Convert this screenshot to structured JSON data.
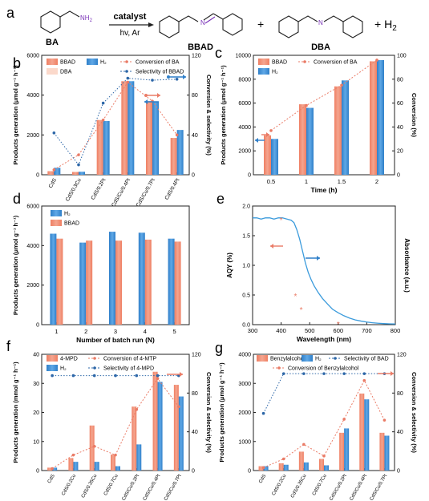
{
  "scheme": {
    "panel_label": "a",
    "reactant": "BA",
    "reactant_group": "NH",
    "reactant_group_sub": "2",
    "catalyst_label": "catalyst",
    "conditions_label": "hv, Ar",
    "product1": "BBAD",
    "product1_atom": "N",
    "plus1": "+",
    "product2": "DBA",
    "product2_atom": "N",
    "plus2": "+ H",
    "h2_sub": "2"
  },
  "colors": {
    "bbad": "#f4a58f",
    "bbad_dark": "#ef7f63",
    "dba": "#fbd9cb",
    "h2": "#5fa8e6",
    "h2_dark": "#2f7fc9",
    "conv": "#ea7b66",
    "sel": "#2d67a8",
    "aqy": "#ea7b66",
    "abs": "#3b9bdc"
  },
  "chart_data": [
    {
      "panel": "b",
      "type": "bar",
      "categories": [
        "CdS",
        "CdS/0.3Cu",
        "CdS/0.2Pt",
        "CdS/Cu/0.4Pt",
        "CdS/Cu/0.7Pt",
        "CdS/0.4Pt"
      ],
      "series": [
        {
          "name": "BBAD",
          "axis": "left",
          "values": [
            180,
            140,
            2750,
            4700,
            3700,
            1850
          ]
        },
        {
          "name": "DBA",
          "axis": "left",
          "values": [
            0,
            0,
            0,
            0,
            0,
            0
          ]
        },
        {
          "name": "H2",
          "axis": "left",
          "values": [
            350,
            150,
            2700,
            4700,
            3650,
            2250
          ]
        },
        {
          "name": "Conversion of BA",
          "axis": "right",
          "kind": "line",
          "values": [
            5,
            20,
            55,
            93,
            74,
            40
          ]
        },
        {
          "name": "Selectivity of BBAD",
          "axis": "right",
          "kind": "line",
          "values": [
            42,
            10,
            72,
            97,
            95,
            96
          ]
        }
      ],
      "ylabel": "Products generation (μmol g⁻¹ h⁻¹)",
      "y2label": "Conversion & selectivity (%)",
      "ylim": [
        0,
        6000
      ],
      "y2lim": [
        0,
        120
      ],
      "yticks": [
        0,
        2000,
        4000,
        6000
      ],
      "y2ticks": [
        0,
        40,
        80,
        120
      ]
    },
    {
      "panel": "c",
      "type": "bar",
      "categories": [
        "0.5",
        "1",
        "1.5",
        "2"
      ],
      "series": [
        {
          "name": "BBAD",
          "axis": "left",
          "values": [
            3300,
            5900,
            7400,
            9500
          ]
        },
        {
          "name": "H2",
          "axis": "left",
          "values": [
            3000,
            5600,
            7900,
            9600
          ]
        },
        {
          "name": "Conversion of BA",
          "axis": "right",
          "kind": "line",
          "values": [
            37,
            58,
            75,
            96
          ]
        }
      ],
      "xlabel": "Time (h)",
      "ylabel": "Products generation (μmol g⁻¹ h⁻¹)",
      "y2label": "Conversion (%)",
      "ylim": [
        0,
        10000
      ],
      "y2lim": [
        0,
        100
      ],
      "yticks": [
        0,
        2000,
        4000,
        6000,
        8000,
        10000
      ],
      "y2ticks": [
        0,
        20,
        40,
        60,
        80,
        100
      ]
    },
    {
      "panel": "d",
      "type": "bar",
      "categories": [
        "1",
        "2",
        "3",
        "4",
        "5"
      ],
      "series": [
        {
          "name": "H2",
          "values": [
            4600,
            4150,
            4700,
            4650,
            4350
          ]
        },
        {
          "name": "BBAD",
          "values": [
            4350,
            4250,
            4250,
            4300,
            4200
          ]
        }
      ],
      "xlabel": "Number of batch run (N)",
      "ylabel": "Products generation (μmol g⁻¹ h⁻¹)",
      "ylim": [
        0,
        6000
      ],
      "yticks": [
        0,
        2000,
        4000,
        6000
      ]
    },
    {
      "panel": "e",
      "type": "line",
      "xlabel": "Wavelength (nm)",
      "ylabel": "AQY (%)",
      "y2label": "Absorbance (a.u.)",
      "xlim": [
        300,
        800
      ],
      "ylim": [
        0,
        2.0
      ],
      "xticks": [
        300,
        400,
        500,
        600,
        700,
        800
      ],
      "yticks": [
        0.0,
        0.5,
        1.0,
        1.5,
        2.0
      ],
      "series": [
        {
          "name": "AQY",
          "kind": "scatter",
          "x": [
            400,
            450,
            470,
            600
          ],
          "y": [
            1.76,
            0.47,
            0.24,
            0.0
          ]
        },
        {
          "name": "Absorbance",
          "kind": "line",
          "x": [
            300,
            315,
            330,
            345,
            360,
            375,
            390,
            405,
            420,
            435,
            445,
            455,
            465,
            475,
            485,
            495,
            505,
            515,
            530,
            545,
            560,
            580,
            600,
            620,
            640,
            660,
            680,
            700,
            720,
            740,
            760,
            780,
            800
          ],
          "y": [
            0.9,
            0.9,
            0.89,
            0.9,
            0.9,
            0.89,
            0.9,
            0.9,
            0.89,
            0.88,
            0.86,
            0.8,
            0.72,
            0.62,
            0.52,
            0.44,
            0.38,
            0.33,
            0.27,
            0.22,
            0.18,
            0.13,
            0.1,
            0.075,
            0.055,
            0.04,
            0.03,
            0.022,
            0.016,
            0.012,
            0.009,
            0.007,
            0.006
          ]
        }
      ]
    },
    {
      "panel": "f",
      "type": "bar",
      "categories": [
        "CdS",
        "CdS/0.2Cu",
        "CdS/0.35Cu",
        "CdS/0.7Cu",
        "CdS/Cu/0.2Pt",
        "CdS/Cu/0.4Pt",
        "CdS/Cu/0.7Pt"
      ],
      "series": [
        {
          "name": "4-MPD",
          "axis": "left",
          "values": [
            1.0,
            4.3,
            15.5,
            5.5,
            22,
            34,
            29.5
          ]
        },
        {
          "name": "H2",
          "axis": "left",
          "values": [
            1.0,
            3.0,
            3.0,
            1.5,
            9.0,
            30.5,
            25.5
          ]
        },
        {
          "name": "Conversion of 4-MTP",
          "axis": "right",
          "kind": "line",
          "values": [
            2,
            16,
            25,
            16,
            63,
            95,
            66
          ]
        },
        {
          "name": "Selectivity of 4-MPD",
          "axis": "right",
          "kind": "line",
          "values": [
            98,
            98,
            98,
            98,
            98,
            98,
            98
          ]
        }
      ],
      "ylabel": "Products generation (mmol g⁻¹ h⁻¹)",
      "y2label": "Conversion & selectivity (%)",
      "ylim": [
        0,
        40
      ],
      "y2lim": [
        0,
        120
      ],
      "yticks": [
        0,
        10,
        20,
        30,
        40
      ],
      "y2ticks": [
        0,
        40,
        80,
        120
      ]
    },
    {
      "panel": "g",
      "type": "bar",
      "categories": [
        "CdS",
        "CdS/0.2Cu",
        "CdS/0.35Cu",
        "CdS/0.7Cu",
        "CdS/Cu/0.2Pt",
        "CdS/Cu/0.4Pt",
        "CdS/Cu/0.7Pt"
      ],
      "series": [
        {
          "name": "Benzylalcohol",
          "axis": "left",
          "values": [
            150,
            250,
            650,
            400,
            1300,
            2650,
            1300
          ]
        },
        {
          "name": "H2",
          "axis": "left",
          "values": [
            150,
            200,
            280,
            180,
            1450,
            2450,
            1200
          ]
        },
        {
          "name": "Selectivity of BAD",
          "axis": "right",
          "kind": "line",
          "values": [
            59,
            100,
            100,
            100,
            100,
            100,
            100
          ]
        },
        {
          "name": "Conversion of Benzylalcohol",
          "axis": "right",
          "kind": "line",
          "values": [
            3,
            12,
            27,
            15,
            53,
            93,
            52
          ]
        }
      ],
      "ylabel": "Products generation (μmol g⁻¹ h⁻¹)",
      "y2label": "Conversion & selectivity (%)",
      "ylim": [
        0,
        4000
      ],
      "y2lim": [
        0,
        120
      ],
      "yticks": [
        0,
        1000,
        2000,
        3000,
        4000
      ],
      "y2ticks": [
        0,
        40,
        80,
        120
      ]
    }
  ]
}
